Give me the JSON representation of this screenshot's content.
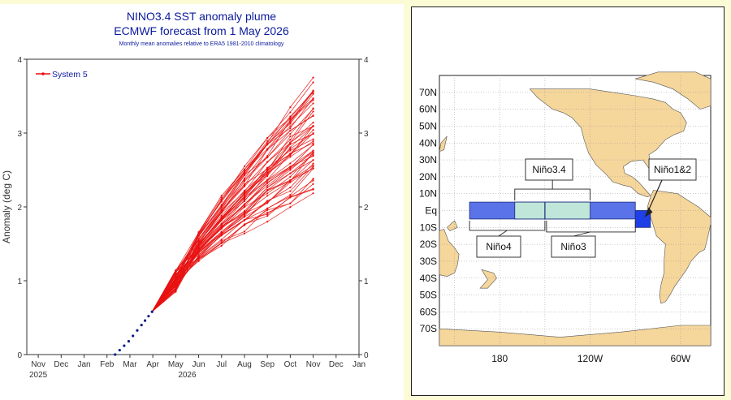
{
  "chart_data": [
    {
      "type": "line",
      "title": "NINO3.4 SST anomaly plume",
      "subtitle": "ECMWF forecast from 1 May 2026",
      "note": "Monthly mean anomalies relative to ERA5 1981-2010 climatology",
      "ylabel": "Anomaly (deg C)",
      "xlabel": "",
      "ylim": [
        0,
        4
      ],
      "yticks": [
        "0",
        "1",
        "2",
        "3",
        "4"
      ],
      "xticks": [
        "Nov",
        "Dec",
        "Jan",
        "Feb",
        "Mar",
        "Apr",
        "May",
        "Jun",
        "Jul",
        "Aug",
        "Sep",
        "Oct",
        "Nov",
        "Dec",
        "Jan"
      ],
      "year_labels": [
        "2025",
        "2026"
      ],
      "legend": {
        "label": "System 5",
        "placement": "top-left"
      },
      "colors": {
        "forecast": "#e81010",
        "observed": "#0b1a8a",
        "title": "#0a1a9c"
      },
      "observed": {
        "x": [
          "2026-02-25",
          "2026-03-15",
          "2026-04-01",
          "2026-04-15"
        ],
        "y": [
          0.0,
          0.18,
          0.4,
          0.58
        ]
      },
      "forecast_months": [
        "2026-05",
        "2026-06",
        "2026-07",
        "2026-08",
        "2026-09",
        "2026-10",
        "2026-11"
      ],
      "ensemble_start": 1.0,
      "ensemble_end_min": 2.2,
      "ensemble_end_max": 3.8,
      "members": 51
    },
    {
      "type": "map",
      "lat_labels": [
        "70N",
        "60N",
        "50N",
        "40N",
        "30N",
        "20N",
        "10N",
        "Eq",
        "10S",
        "20S",
        "30S",
        "40S",
        "50S",
        "60S",
        "70S"
      ],
      "lon_labels": [
        "180",
        "120W",
        "60W"
      ],
      "regions": [
        {
          "name": "Niño4",
          "lon": [
            160,
            210
          ],
          "lat": [
            -5,
            5
          ],
          "color": "#5b73e8"
        },
        {
          "name": "Niño3.4",
          "lon": [
            190,
            240
          ],
          "lat": [
            -5,
            5
          ],
          "color": "#bfe6d9"
        },
        {
          "name": "Niño3",
          "lon": [
            210,
            270
          ],
          "lat": [
            -5,
            5
          ],
          "color": "#5b73e8"
        },
        {
          "name": "Niño1&2",
          "lon": [
            270,
            280
          ],
          "lat": [
            -10,
            0
          ],
          "color": "#1f3fe6"
        }
      ],
      "colors": {
        "land": "#f5d69b",
        "ocean": "#ffffff",
        "grid": "#999999"
      }
    }
  ]
}
